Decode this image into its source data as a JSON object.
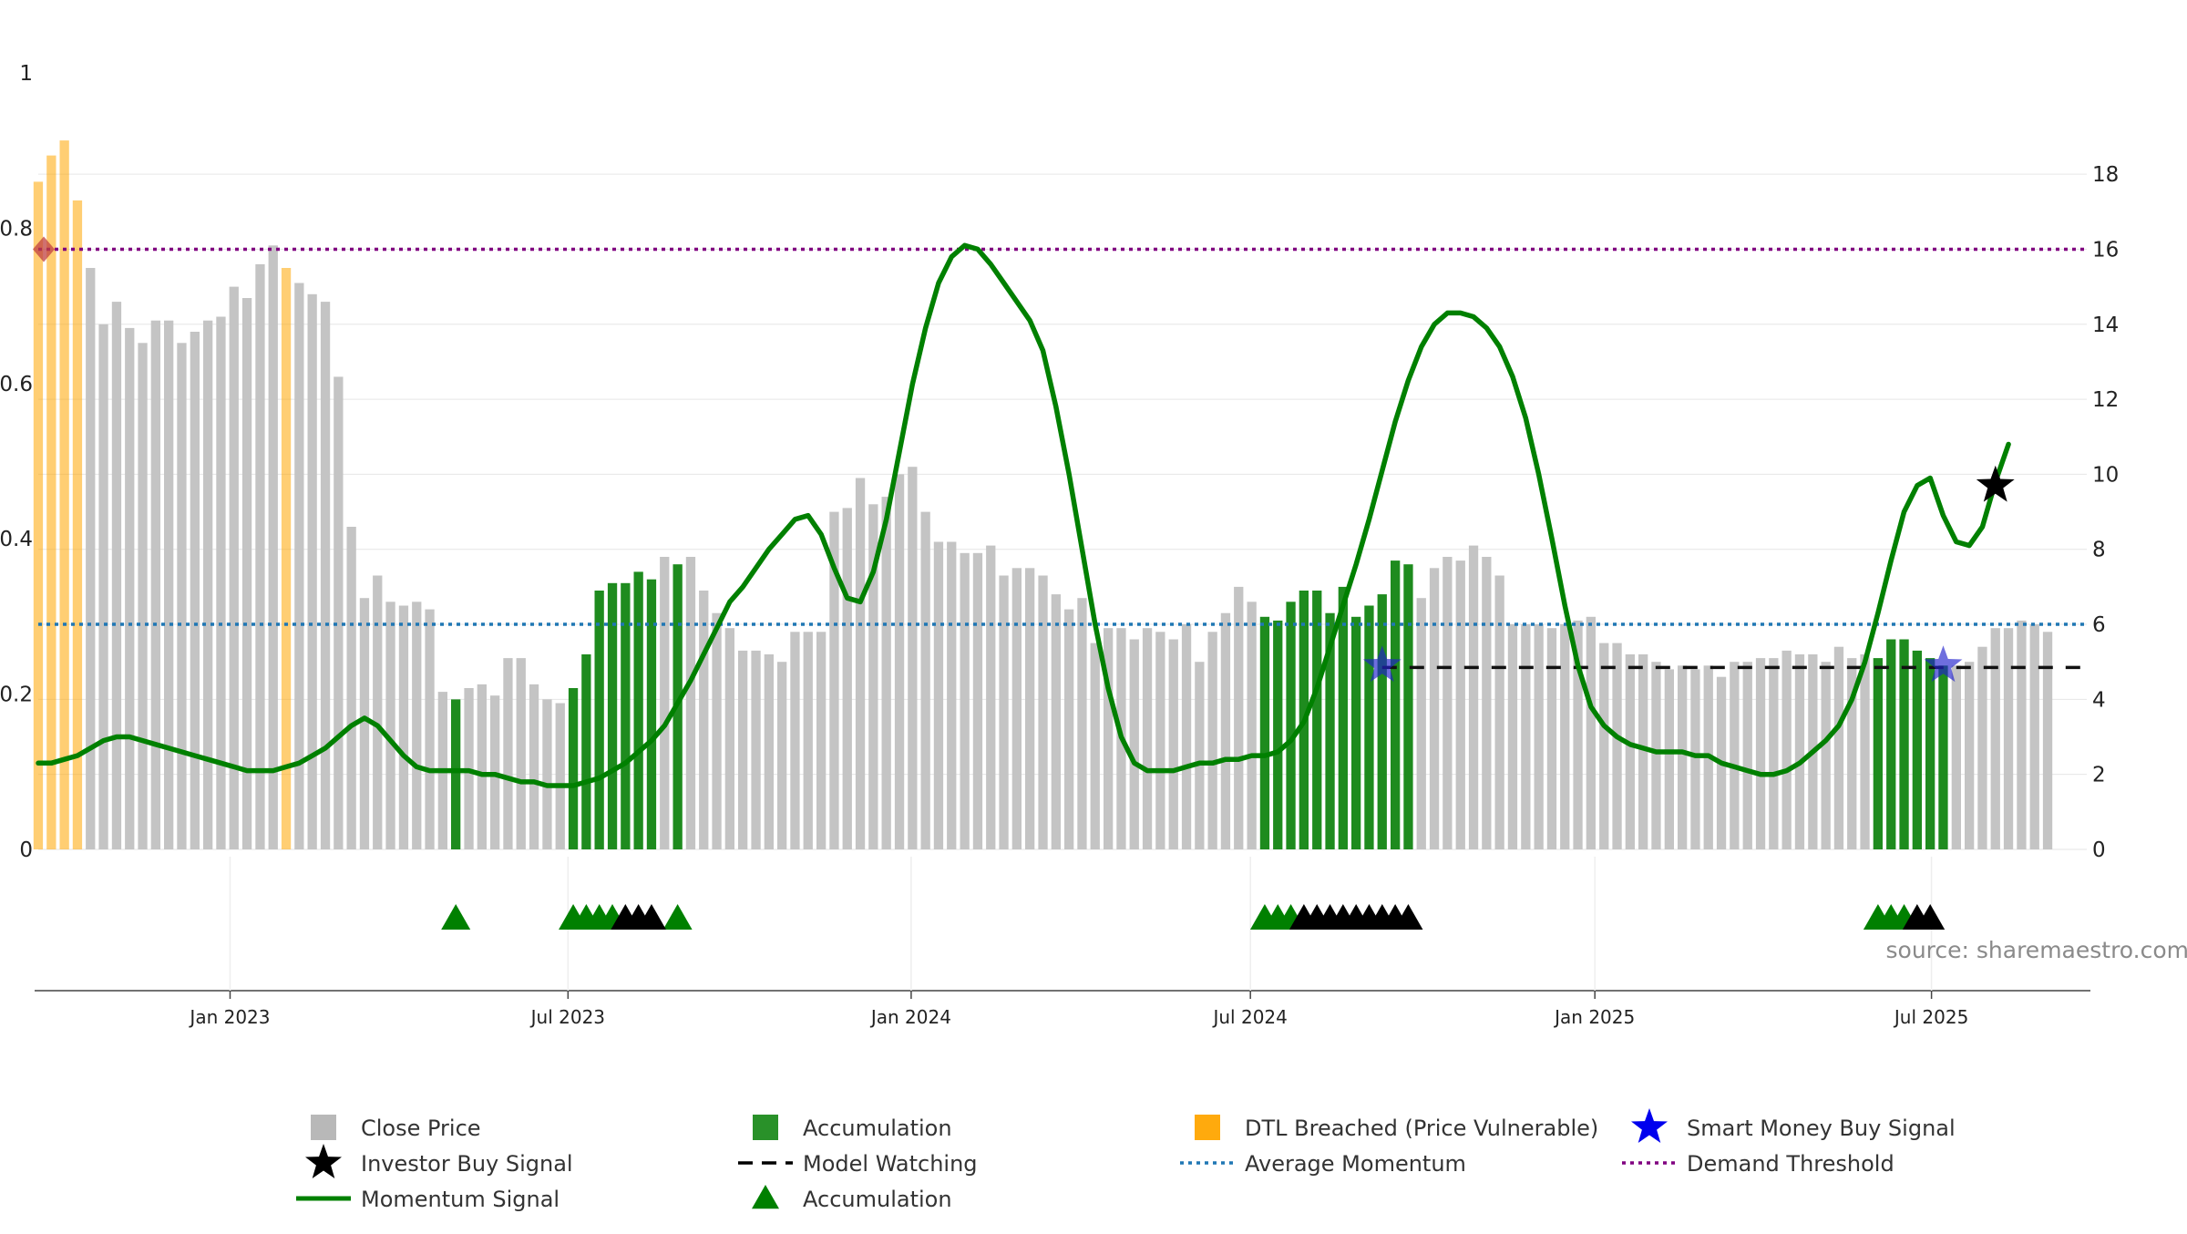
{
  "chart_data": {
    "type": "bar",
    "source": "source: sharemaestro.com",
    "left_axis": {
      "ticks": [
        0,
        0.2,
        0.4,
        0.6,
        0.8,
        1
      ],
      "tick_labels": [
        "0",
        "0.2",
        "0.4",
        "0.6",
        "0.8",
        "1"
      ],
      "ylim": [
        0,
        1
      ]
    },
    "right_axis": {
      "ticks": [
        0,
        2,
        4,
        6,
        8,
        10,
        12,
        14,
        16,
        18
      ],
      "tick_labels": [
        "0",
        "2",
        "4",
        "6",
        "8",
        "10",
        "12",
        "14",
        "16",
        "18"
      ],
      "ylim": [
        0,
        20.7
      ]
    },
    "x_axis": {
      "start_week": 0,
      "end_week": 157,
      "ticks": [
        {
          "label": "Jan 2023",
          "week": 14.7
        },
        {
          "label": "Jul 2023",
          "week": 40.6
        },
        {
          "label": "Jan 2024",
          "week": 66.9
        },
        {
          "label": "Jul 2024",
          "week": 92.9
        },
        {
          "label": "Jan 2025",
          "week": 119.3
        },
        {
          "label": "Jul 2025",
          "week": 145.1
        }
      ]
    },
    "grid": true,
    "legend_position": "bottom",
    "average_momentum": 6.0,
    "demand_threshold": 16.0,
    "close_price": [
      17.8,
      18.5,
      18.9,
      17.3,
      15.5,
      14.0,
      14.6,
      13.9,
      13.5,
      14.1,
      14.1,
      13.5,
      13.8,
      14.1,
      14.2,
      15.0,
      14.7,
      15.6,
      16.1,
      15.5,
      15.1,
      14.8,
      14.6,
      12.6,
      8.6,
      6.7,
      7.3,
      6.6,
      6.5,
      6.6,
      6.4,
      4.2,
      4.0,
      4.3,
      4.4,
      4.1,
      5.1,
      5.1,
      4.4,
      4.0,
      3.9,
      4.3,
      5.2,
      6.9,
      7.1,
      7.1,
      7.4,
      7.2,
      7.8,
      7.6,
      7.8,
      6.9,
      6.3,
      5.9,
      5.3,
      5.3,
      5.2,
      5.0,
      5.8,
      5.8,
      5.8,
      9.0,
      9.1,
      9.9,
      9.2,
      9.4,
      10.0,
      10.2,
      9.0,
      8.2,
      8.2,
      7.9,
      7.9,
      8.1,
      7.3,
      7.5,
      7.5,
      7.3,
      6.8,
      6.4,
      6.7,
      5.5,
      5.9,
      5.9,
      5.6,
      5.9,
      5.8,
      5.6,
      6.0,
      5.0,
      5.8,
      6.3,
      7.0,
      6.6,
      6.2,
      6.1,
      6.6,
      6.9,
      6.9,
      6.3,
      7.0,
      6.2,
      6.5,
      6.8,
      7.7,
      7.6,
      6.7,
      7.5,
      7.8,
      7.7,
      8.1,
      7.8,
      7.3,
      6.0,
      6.0,
      6.0,
      5.9,
      6.0,
      6.1,
      6.2,
      5.5,
      5.5,
      5.2,
      5.2,
      5.0,
      4.8,
      4.9,
      4.8,
      4.9,
      4.6,
      5.0,
      5.0,
      5.1,
      5.1,
      5.3,
      5.2,
      5.2,
      5.0,
      5.4,
      5.1,
      5.2,
      5.1,
      5.6,
      5.6,
      5.3,
      5.1,
      4.9,
      4.9,
      5.0,
      5.4,
      5.9,
      5.9,
      6.1,
      6.0,
      5.8
    ],
    "bar_category": "NNNNNNNNNNNNNNNNNNNNNNNNNNNNNNNNAAANNNNNNNNNNNNNNNNNNNNNNNNNNNNNNNNNNNNNNNNNNNNNNNNNNNNNNNNNNNNNNNNNNNNNNNNNNNNNNNNNNNNNNNNNNNNNNNNNNNNNNNNNNNNNNNNNNNNNNNNNNNNNN",
    "momentum_signal": [
      2.3,
      2.3,
      2.4,
      2.5,
      2.7,
      2.9,
      3.0,
      3.0,
      2.9,
      2.8,
      2.7,
      2.6,
      2.5,
      2.4,
      2.3,
      2.2,
      2.1,
      2.1,
      2.1,
      2.2,
      2.3,
      2.5,
      2.7,
      3.0,
      3.3,
      3.5,
      3.3,
      2.9,
      2.5,
      2.2,
      2.1,
      2.1,
      2.1,
      2.1,
      2.0,
      2.0,
      1.9,
      1.8,
      1.8,
      1.7,
      1.7,
      1.7,
      1.8,
      1.9,
      2.1,
      2.3,
      2.6,
      2.9,
      3.3,
      3.9,
      4.5,
      5.2,
      5.9,
      6.6,
      7.0,
      7.5,
      8.0,
      8.4,
      8.8,
      8.9,
      8.4,
      7.5,
      6.7,
      6.6,
      7.4,
      8.8,
      10.6,
      12.4,
      13.9,
      15.1,
      15.8,
      16.1,
      16.0,
      15.6,
      15.1,
      14.6,
      14.1,
      13.3,
      11.8,
      10.0,
      8.0,
      6.0,
      4.3,
      3.0,
      2.3,
      2.1,
      2.1,
      2.1,
      2.2,
      2.3,
      2.3,
      2.4,
      2.4,
      2.5,
      2.5,
      2.6,
      2.9,
      3.4,
      4.3,
      5.4,
      6.5,
      7.6,
      8.8,
      10.1,
      11.4,
      12.5,
      13.4,
      14.0,
      14.3,
      14.3,
      14.2,
      13.9,
      13.4,
      12.6,
      11.5,
      10.0,
      8.3,
      6.5,
      4.9,
      3.8,
      3.3,
      3.0,
      2.8,
      2.7,
      2.6,
      2.6,
      2.6,
      2.5,
      2.5,
      2.3,
      2.2,
      2.1,
      2.0,
      2.0,
      2.1,
      2.3,
      2.6,
      2.9,
      3.3,
      4.0,
      5.0,
      6.3,
      7.7,
      9.0,
      9.7,
      9.9,
      8.9,
      8.2,
      8.1,
      8.6,
      9.8,
      10.8
    ],
    "dtl_breached": [
      0,
      1,
      2,
      3,
      19
    ],
    "accumulation_bars": [
      32,
      41,
      42,
      43,
      44,
      45,
      46,
      47,
      49,
      94,
      95,
      96,
      97,
      98,
      99,
      100,
      101,
      102,
      103,
      104,
      105,
      141,
      142,
      143,
      144,
      145,
      146
    ],
    "accumulation_markers": [
      32,
      41,
      42,
      43,
      44,
      49,
      94,
      95,
      96,
      141,
      142,
      143
    ],
    "investor_markers": [
      45,
      46,
      47,
      97,
      98,
      99,
      100,
      101,
      102,
      103,
      104,
      105,
      144,
      145
    ],
    "model_watching": [
      103,
      157
    ],
    "investor_buy_signal": [
      {
        "week": 150,
        "value": 9.7
      }
    ],
    "smart_money_buy_signal": [
      {
        "week": 103,
        "value": 4.9
      },
      {
        "week": 146,
        "value": 4.9
      }
    ],
    "demand_threshold_marker": [
      {
        "week": 0,
        "value": 16.0
      }
    ],
    "legend": [
      {
        "label": "Close Price",
        "symbol": "square",
        "color": "#b8b8b8"
      },
      {
        "label": "Accumulation",
        "symbol": "square",
        "color": "#1e8b1e"
      },
      {
        "label": "DTL Breached (Price Vulnerable)",
        "symbol": "square",
        "color": "#ffa500"
      },
      {
        "label": "Smart Money Buy Signal",
        "symbol": "star",
        "color": "#0000ee"
      },
      {
        "label": "Investor Buy Signal",
        "symbol": "star",
        "color": "#000000"
      },
      {
        "label": "Model Watching",
        "symbol": "dash",
        "color": "#000000"
      },
      {
        "label": "Average Momentum",
        "symbol": "dotted",
        "color": "#1f77b4"
      },
      {
        "label": "Demand Threshold",
        "symbol": "dotted",
        "color": "#800080"
      },
      {
        "label": "Momentum Signal",
        "symbol": "line",
        "color": "#008000"
      },
      {
        "label": "Accumulation",
        "symbol": "triangle",
        "color": "#008000"
      }
    ]
  }
}
